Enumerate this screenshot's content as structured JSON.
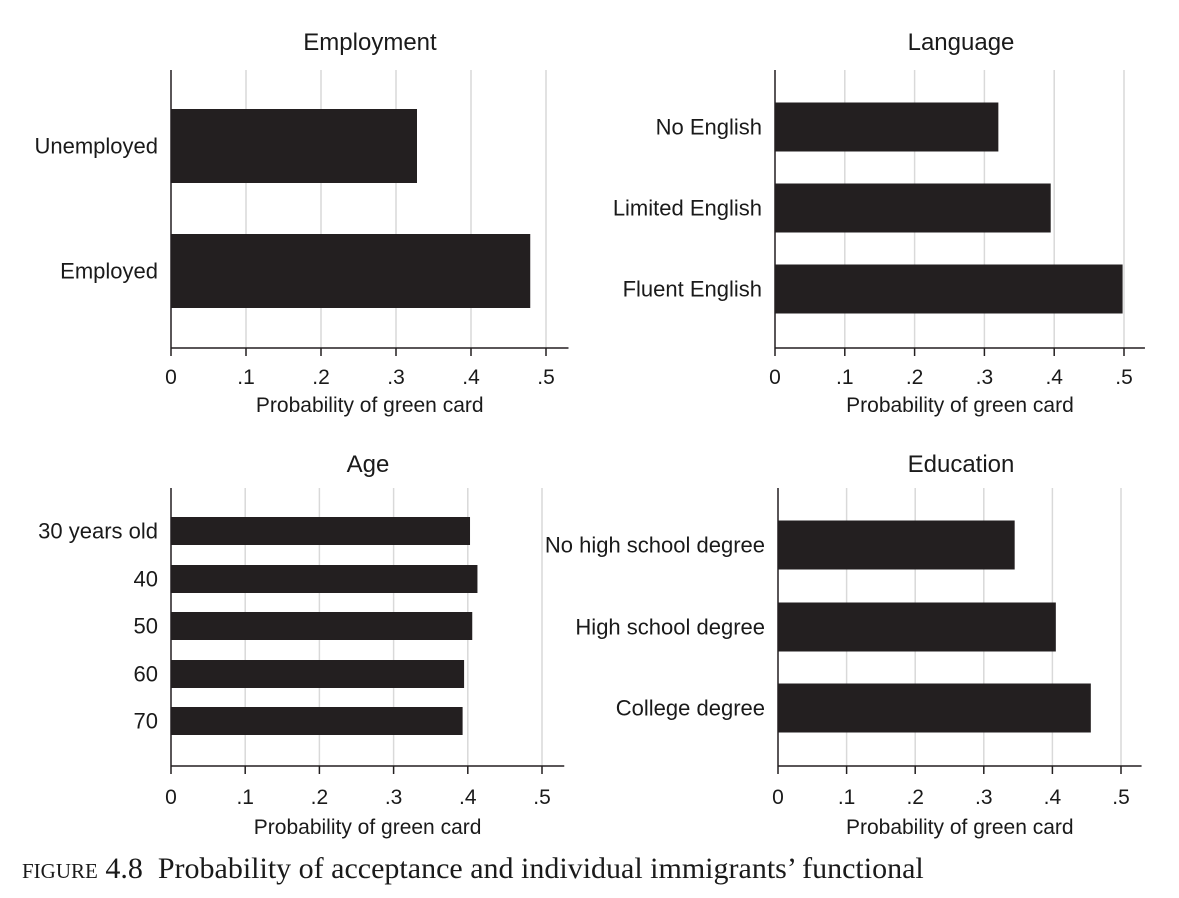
{
  "chart_data": [
    {
      "type": "bar",
      "orientation": "horizontal",
      "title": "Employment",
      "categories": [
        "Unemployed",
        "Employed"
      ],
      "values": [
        0.328,
        0.479
      ],
      "xlabel": "Probability of green card",
      "xlim": [
        0,
        0.53
      ],
      "xticks": [
        0,
        0.1,
        0.2,
        0.3,
        0.4,
        0.5
      ],
      "xtick_labels": [
        "0",
        ".1",
        ".2",
        ".3",
        ".4",
        ".5"
      ],
      "grid": "vertical"
    },
    {
      "type": "bar",
      "orientation": "horizontal",
      "title": "Language",
      "categories": [
        "No English",
        "Limited English",
        "Fluent English"
      ],
      "values": [
        0.32,
        0.395,
        0.498
      ],
      "xlabel": "Probability of green card",
      "xlim": [
        0,
        0.53
      ],
      "xticks": [
        0,
        0.1,
        0.2,
        0.3,
        0.4,
        0.5
      ],
      "xtick_labels": [
        "0",
        ".1",
        ".2",
        ".3",
        ".4",
        ".5"
      ],
      "grid": "vertical"
    },
    {
      "type": "bar",
      "orientation": "horizontal",
      "title": "Age",
      "categories": [
        "30 years old",
        "40",
        "50",
        "60",
        "70"
      ],
      "values": [
        0.403,
        0.413,
        0.406,
        0.395,
        0.393
      ],
      "xlabel": "Probability of green card",
      "xlim": [
        0,
        0.53
      ],
      "xticks": [
        0,
        0.1,
        0.2,
        0.3,
        0.4,
        0.5
      ],
      "xtick_labels": [
        "0",
        ".1",
        ".2",
        ".3",
        ".4",
        ".5"
      ],
      "grid": "vertical"
    },
    {
      "type": "bar",
      "orientation": "horizontal",
      "title": "Education",
      "categories": [
        "No high school degree",
        "High school degree",
        "College degree"
      ],
      "values": [
        0.345,
        0.405,
        0.456
      ],
      "xlabel": "Probability of green card",
      "xlim": [
        0,
        0.53
      ],
      "xticks": [
        0,
        0.1,
        0.2,
        0.3,
        0.4,
        0.5
      ],
      "xtick_labels": [
        "0",
        ".1",
        ".2",
        ".3",
        ".4",
        ".5"
      ],
      "grid": "vertical"
    }
  ],
  "colors": {
    "bar": "#231f20",
    "grid": "#d9d9d9",
    "axis": "#231f20"
  },
  "caption": {
    "figure_label": "figure 4.8",
    "text": "Probability of acceptance and individual immigrants’ functional"
  }
}
